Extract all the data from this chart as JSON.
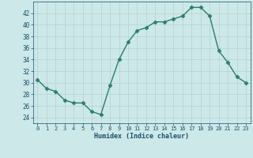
{
  "x": [
    0,
    1,
    2,
    3,
    4,
    5,
    6,
    7,
    8,
    9,
    10,
    11,
    12,
    13,
    14,
    15,
    16,
    17,
    18,
    19,
    20,
    21,
    22,
    23
  ],
  "y": [
    30.5,
    29,
    28.5,
    27,
    26.5,
    26.5,
    25,
    24.5,
    29.5,
    34,
    37,
    39,
    39.5,
    40.5,
    40.5,
    41,
    41.5,
    43,
    43,
    41.5,
    35.5,
    33.5,
    31,
    30
  ],
  "xlabel": "Humidex (Indice chaleur)",
  "xlim": [
    -0.5,
    23.5
  ],
  "ylim": [
    23,
    44
  ],
  "yticks": [
    24,
    26,
    28,
    30,
    32,
    34,
    36,
    38,
    40,
    42
  ],
  "xticks": [
    0,
    1,
    2,
    3,
    4,
    5,
    6,
    7,
    8,
    9,
    10,
    11,
    12,
    13,
    14,
    15,
    16,
    17,
    18,
    19,
    20,
    21,
    22,
    23
  ],
  "line_color": "#2d7d6b",
  "marker": "D",
  "marker_size": 2.5,
  "bg_color": "#cce8e8",
  "grid_color": "#b8d4d4",
  "xlabel_color": "#1a4f6e",
  "tick_color": "#1a4f6e"
}
